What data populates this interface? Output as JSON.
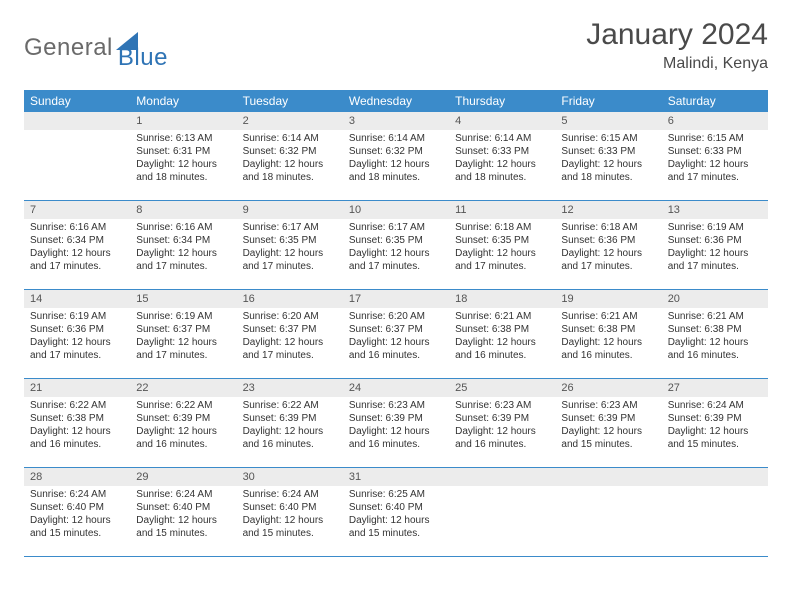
{
  "brand": {
    "general": "General",
    "blue": "Blue",
    "icon_color": "#2f74b5",
    "general_color": "#6a6a6a"
  },
  "title": "January 2024",
  "location": "Malindi, Kenya",
  "header_bg": "#3b8bca",
  "daynum_bg": "#ececec",
  "weekdays": [
    "Sunday",
    "Monday",
    "Tuesday",
    "Wednesday",
    "Thursday",
    "Friday",
    "Saturday"
  ],
  "weeks": [
    [
      null,
      {
        "n": "1",
        "sr": "6:13 AM",
        "ss": "6:31 PM",
        "dl": "12 hours and 18 minutes."
      },
      {
        "n": "2",
        "sr": "6:14 AM",
        "ss": "6:32 PM",
        "dl": "12 hours and 18 minutes."
      },
      {
        "n": "3",
        "sr": "6:14 AM",
        "ss": "6:32 PM",
        "dl": "12 hours and 18 minutes."
      },
      {
        "n": "4",
        "sr": "6:14 AM",
        "ss": "6:33 PM",
        "dl": "12 hours and 18 minutes."
      },
      {
        "n": "5",
        "sr": "6:15 AM",
        "ss": "6:33 PM",
        "dl": "12 hours and 18 minutes."
      },
      {
        "n": "6",
        "sr": "6:15 AM",
        "ss": "6:33 PM",
        "dl": "12 hours and 17 minutes."
      }
    ],
    [
      {
        "n": "7",
        "sr": "6:16 AM",
        "ss": "6:34 PM",
        "dl": "12 hours and 17 minutes."
      },
      {
        "n": "8",
        "sr": "6:16 AM",
        "ss": "6:34 PM",
        "dl": "12 hours and 17 minutes."
      },
      {
        "n": "9",
        "sr": "6:17 AM",
        "ss": "6:35 PM",
        "dl": "12 hours and 17 minutes."
      },
      {
        "n": "10",
        "sr": "6:17 AM",
        "ss": "6:35 PM",
        "dl": "12 hours and 17 minutes."
      },
      {
        "n": "11",
        "sr": "6:18 AM",
        "ss": "6:35 PM",
        "dl": "12 hours and 17 minutes."
      },
      {
        "n": "12",
        "sr": "6:18 AM",
        "ss": "6:36 PM",
        "dl": "12 hours and 17 minutes."
      },
      {
        "n": "13",
        "sr": "6:19 AM",
        "ss": "6:36 PM",
        "dl": "12 hours and 17 minutes."
      }
    ],
    [
      {
        "n": "14",
        "sr": "6:19 AM",
        "ss": "6:36 PM",
        "dl": "12 hours and 17 minutes."
      },
      {
        "n": "15",
        "sr": "6:19 AM",
        "ss": "6:37 PM",
        "dl": "12 hours and 17 minutes."
      },
      {
        "n": "16",
        "sr": "6:20 AM",
        "ss": "6:37 PM",
        "dl": "12 hours and 17 minutes."
      },
      {
        "n": "17",
        "sr": "6:20 AM",
        "ss": "6:37 PM",
        "dl": "12 hours and 16 minutes."
      },
      {
        "n": "18",
        "sr": "6:21 AM",
        "ss": "6:38 PM",
        "dl": "12 hours and 16 minutes."
      },
      {
        "n": "19",
        "sr": "6:21 AM",
        "ss": "6:38 PM",
        "dl": "12 hours and 16 minutes."
      },
      {
        "n": "20",
        "sr": "6:21 AM",
        "ss": "6:38 PM",
        "dl": "12 hours and 16 minutes."
      }
    ],
    [
      {
        "n": "21",
        "sr": "6:22 AM",
        "ss": "6:38 PM",
        "dl": "12 hours and 16 minutes."
      },
      {
        "n": "22",
        "sr": "6:22 AM",
        "ss": "6:39 PM",
        "dl": "12 hours and 16 minutes."
      },
      {
        "n": "23",
        "sr": "6:22 AM",
        "ss": "6:39 PM",
        "dl": "12 hours and 16 minutes."
      },
      {
        "n": "24",
        "sr": "6:23 AM",
        "ss": "6:39 PM",
        "dl": "12 hours and 16 minutes."
      },
      {
        "n": "25",
        "sr": "6:23 AM",
        "ss": "6:39 PM",
        "dl": "12 hours and 16 minutes."
      },
      {
        "n": "26",
        "sr": "6:23 AM",
        "ss": "6:39 PM",
        "dl": "12 hours and 15 minutes."
      },
      {
        "n": "27",
        "sr": "6:24 AM",
        "ss": "6:39 PM",
        "dl": "12 hours and 15 minutes."
      }
    ],
    [
      {
        "n": "28",
        "sr": "6:24 AM",
        "ss": "6:40 PM",
        "dl": "12 hours and 15 minutes."
      },
      {
        "n": "29",
        "sr": "6:24 AM",
        "ss": "6:40 PM",
        "dl": "12 hours and 15 minutes."
      },
      {
        "n": "30",
        "sr": "6:24 AM",
        "ss": "6:40 PM",
        "dl": "12 hours and 15 minutes."
      },
      {
        "n": "31",
        "sr": "6:25 AM",
        "ss": "6:40 PM",
        "dl": "12 hours and 15 minutes."
      },
      null,
      null,
      null
    ]
  ],
  "labels": {
    "sunrise": "Sunrise: ",
    "sunset": "Sunset: ",
    "daylight": "Daylight: "
  }
}
